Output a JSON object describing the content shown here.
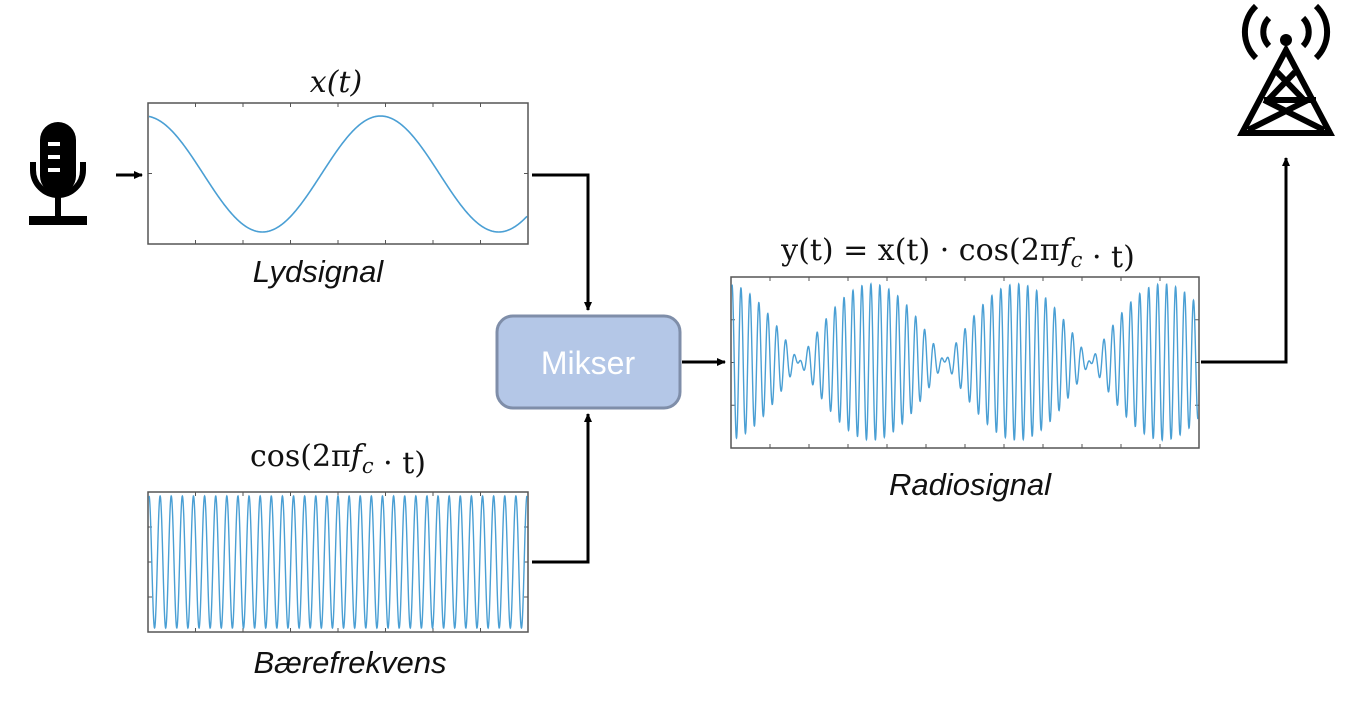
{
  "audio_plot": {
    "formula": "x(t)",
    "caption": "Lydsignal"
  },
  "carrier_plot": {
    "formula": "cos(2πf_c · t)",
    "caption": "Bærefrekvens"
  },
  "radio_plot": {
    "formula": "y(t) = x(t) · cos(2πf_c · t)",
    "caption": "Radiosignal"
  },
  "mixer": {
    "label": "Mikser"
  },
  "icons": {
    "input": "microphone-icon",
    "output": "radio-tower-icon"
  },
  "colors": {
    "signal": "#4a9fd4",
    "mixer_fill": "#b4c7e7",
    "mixer_stroke": "#7f8ea9",
    "frame": "#555555"
  }
}
